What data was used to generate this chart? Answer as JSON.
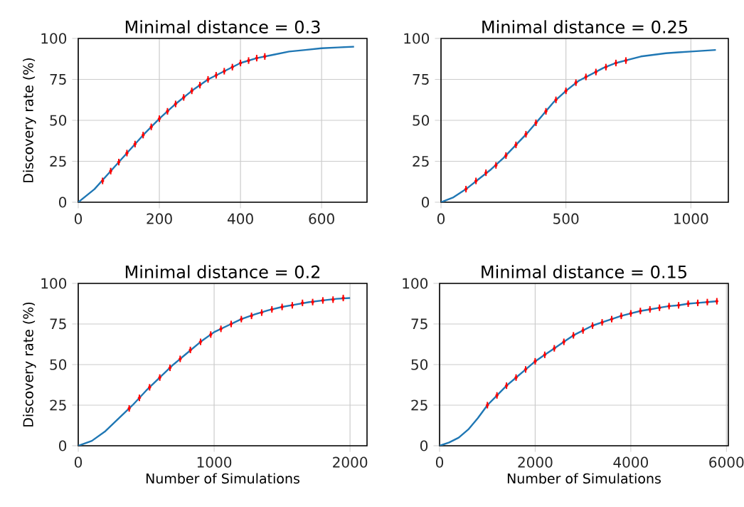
{
  "chart_data": [
    {
      "type": "line",
      "title": "Minimal distance = 0.3",
      "ylabel": "Discovery rate (%)",
      "xlim": [
        0,
        712
      ],
      "xticks": [
        0,
        200,
        400,
        600
      ],
      "ylim": [
        0,
        100
      ],
      "yticks": [
        0,
        25,
        50,
        75,
        100
      ],
      "grid": true,
      "line_style": "solid",
      "series": [
        {
          "color": "#1f77b4",
          "x": [
            0,
            40,
            80,
            120,
            160,
            200,
            240,
            280,
            320,
            360,
            400,
            440,
            480,
            520,
            560,
            600,
            640,
            680
          ],
          "values": [
            0,
            8,
            19,
            30,
            41,
            51,
            60,
            68,
            75,
            80,
            85,
            88,
            90,
            92,
            93,
            94,
            94.5,
            95
          ]
        },
        {
          "type": "scatter",
          "marker": "circle",
          "color": "#ff0000",
          "x": [
            60,
            80,
            100,
            120,
            140,
            160,
            180,
            200,
            220,
            240,
            260,
            280,
            300,
            320,
            340,
            360,
            380,
            400,
            420,
            440,
            460
          ],
          "values": [
            13,
            19,
            24.5,
            30,
            35.5,
            41,
            46,
            51,
            55.5,
            60,
            64,
            68,
            71.5,
            75,
            77.5,
            80,
            82.5,
            85,
            86.5,
            88,
            89
          ],
          "errors": [
            2,
            2,
            2,
            2,
            2,
            2,
            2,
            2,
            2,
            2,
            2,
            2,
            2,
            2,
            2,
            2,
            2,
            2,
            2,
            2,
            2
          ]
        }
      ]
    },
    {
      "type": "line",
      "title": "Minimal distance = 0.25",
      "xlim": [
        0,
        1150
      ],
      "xticks": [
        0,
        500,
        1000
      ],
      "ylim": [
        0,
        100
      ],
      "yticks": [
        0,
        25,
        50,
        75,
        100
      ],
      "grid": true,
      "line_style": "solid",
      "series": [
        {
          "color": "#1f77b4",
          "x": [
            0,
            50,
            100,
            150,
            200,
            250,
            300,
            350,
            400,
            450,
            500,
            550,
            600,
            650,
            700,
            750,
            800,
            850,
            900,
            950,
            1000,
            1050,
            1100
          ],
          "values": [
            0,
            3,
            8,
            14,
            20,
            27,
            35,
            43,
            52,
            61,
            68,
            74,
            78,
            82,
            85,
            87,
            89,
            90,
            91,
            91.5,
            92,
            92.5,
            93
          ]
        },
        {
          "type": "scatter",
          "marker": "circle",
          "color": "#ff0000",
          "x": [
            100,
            140,
            180,
            220,
            260,
            300,
            340,
            380,
            420,
            460,
            500,
            540,
            580,
            620,
            660,
            700,
            740
          ],
          "values": [
            8,
            13,
            18,
            22.5,
            28.5,
            35,
            41.5,
            48.5,
            55.5,
            62.5,
            68,
            73,
            76.5,
            79.5,
            82.5,
            85,
            86.5
          ],
          "errors": [
            2,
            2,
            2,
            2,
            2,
            2,
            2,
            2,
            2,
            2,
            2,
            2,
            2,
            2,
            2,
            2,
            2
          ]
        }
      ]
    },
    {
      "type": "line",
      "title": "Minimal distance = 0.2",
      "xlabel": "Number of Simulations",
      "ylabel": "Discovery rate (%)",
      "xlim": [
        0,
        2125
      ],
      "xticks": [
        0,
        1000,
        2000
      ],
      "ylim": [
        0,
        100
      ],
      "yticks": [
        0,
        25,
        50,
        75,
        100
      ],
      "grid": true,
      "line_style": "solid",
      "series": [
        {
          "color": "#1f77b4",
          "x": [
            0,
            100,
            200,
            300,
            400,
            500,
            600,
            700,
            800,
            900,
            1000,
            1100,
            1200,
            1300,
            1400,
            1500,
            1600,
            1700,
            1800,
            1900,
            2000
          ],
          "values": [
            0,
            3,
            9,
            17,
            25,
            34,
            42,
            50,
            57,
            64,
            70,
            74,
            78,
            81,
            83.5,
            85.5,
            87,
            88.5,
            89.5,
            90.5,
            91
          ]
        },
        {
          "type": "scatter",
          "marker": "circle",
          "color": "#ff0000",
          "x": [
            375,
            450,
            525,
            600,
            675,
            750,
            825,
            900,
            975,
            1050,
            1125,
            1200,
            1275,
            1350,
            1425,
            1500,
            1575,
            1650,
            1725,
            1800,
            1875,
            1950
          ],
          "values": [
            23,
            29.5,
            36,
            42,
            48,
            53.5,
            59,
            64,
            68.5,
            72,
            75,
            78,
            80,
            82,
            84,
            85.5,
            86.5,
            88,
            88.5,
            89.5,
            90,
            91
          ],
          "errors": [
            2,
            2,
            2,
            2,
            2,
            2,
            2,
            2,
            2,
            2,
            2,
            2,
            2,
            2,
            2,
            2,
            2,
            2,
            2,
            2,
            2,
            2
          ]
        }
      ]
    },
    {
      "type": "line",
      "title": "Minimal distance = 0.15",
      "xlabel": "Number of Simulations",
      "xlim": [
        0,
        6040
      ],
      "xticks": [
        0,
        2000,
        4000,
        6000
      ],
      "ylim": [
        0,
        100
      ],
      "yticks": [
        0,
        25,
        50,
        75,
        100
      ],
      "grid": true,
      "line_style": "solid",
      "series": [
        {
          "color": "#1f77b4",
          "x": [
            0,
            200,
            400,
            600,
            800,
            1000,
            1200,
            1400,
            1600,
            1800,
            2000,
            2200,
            2400,
            2600,
            2800,
            3000,
            3200,
            3400,
            3600,
            3800,
            4000,
            4200,
            4400,
            4600,
            4800,
            5000,
            5200,
            5400,
            5600,
            5800
          ],
          "values": [
            0,
            2,
            5,
            10,
            17,
            25,
            31,
            37,
            42,
            47,
            52,
            56,
            60,
            64,
            68,
            71,
            74,
            76,
            78,
            80,
            81.5,
            83,
            84,
            85,
            86,
            86.5,
            87.5,
            88,
            88.5,
            89
          ]
        },
        {
          "type": "scatter",
          "marker": "circle",
          "color": "#ff0000",
          "x": [
            1000,
            1200,
            1400,
            1600,
            1800,
            2000,
            2200,
            2400,
            2600,
            2800,
            3000,
            3200,
            3400,
            3600,
            3800,
            4000,
            4200,
            4400,
            4600,
            4800,
            5000,
            5200,
            5400,
            5600,
            5800
          ],
          "values": [
            25,
            31,
            37,
            42,
            47,
            52,
            56,
            60,
            64,
            68,
            71,
            74,
            76,
            78,
            80,
            81.5,
            83,
            84,
            85,
            86,
            86.5,
            87.5,
            88,
            88.5,
            89
          ],
          "errors": [
            2,
            2,
            2,
            2,
            2,
            2,
            2,
            2,
            2,
            2,
            2,
            2,
            2,
            2,
            2,
            2,
            2,
            2,
            2,
            2,
            2,
            2,
            2,
            2,
            2
          ]
        }
      ]
    }
  ]
}
